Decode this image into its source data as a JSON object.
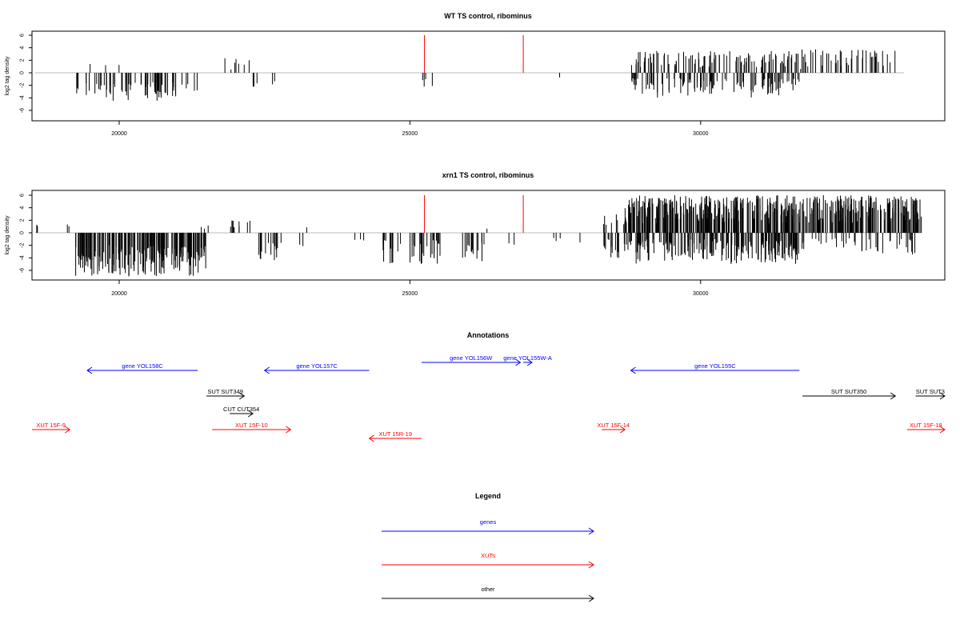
{
  "chart_data": [
    {
      "type": "bar",
      "title": "WT TS control, ribominus",
      "xlabel": "",
      "ylabel": "log2 tag density",
      "xlim": [
        18500,
        34200
      ],
      "ylim": [
        -6,
        6
      ],
      "xticks": [
        20000,
        25000,
        30000
      ],
      "yticks": [
        -6,
        -4,
        -2,
        0,
        2,
        4,
        6
      ],
      "grid": false,
      "baseline": {
        "x": [
          18550,
          33500
        ],
        "color": "#bbbbbb"
      },
      "markers": [
        {
          "x": 25250,
          "color": "#ff0000"
        },
        {
          "x": 26950,
          "color": "#ff0000"
        }
      ],
      "regions": [
        {
          "x": [
            19250,
            21350
          ],
          "min": -4.5,
          "max": -1.5,
          "sign": "neg",
          "count": 70
        },
        {
          "x": [
            19250,
            21350
          ],
          "min": 0.8,
          "max": 1.8,
          "sign": "pos",
          "count": 3
        },
        {
          "x": [
            21750,
            22250
          ],
          "min": 0.5,
          "max": 2.5,
          "sign": "pos",
          "count": 7
        },
        {
          "x": [
            22250,
            22800
          ],
          "min": -2.5,
          "max": -1,
          "sign": "neg",
          "count": 5
        },
        {
          "x": [
            25200,
            25400
          ],
          "min": -2.8,
          "max": -1,
          "sign": "neg",
          "count": 4
        },
        {
          "x": [
            27550,
            27600
          ],
          "min": -1,
          "max": -0.6,
          "sign": "neg",
          "count": 1
        },
        {
          "x": [
            28800,
            31700
          ],
          "min": 0.8,
          "max": 3.5,
          "sign": "pos",
          "count": 110
        },
        {
          "x": [
            28800,
            31700
          ],
          "min": -4,
          "max": -0.8,
          "sign": "neg",
          "count": 110
        },
        {
          "x": [
            31700,
            33400
          ],
          "min": 0.6,
          "max": 3.8,
          "sign": "pos",
          "count": 45
        }
      ]
    },
    {
      "type": "bar",
      "title": "xrn1 TS control, ribominus",
      "xlabel": "",
      "ylabel": "log2 tag density",
      "xlim": [
        18500,
        34200
      ],
      "ylim": [
        -6,
        6
      ],
      "xticks": [
        20000,
        25000,
        30000
      ],
      "yticks": [
        -6,
        -4,
        -2,
        0,
        2,
        4,
        6
      ],
      "grid": false,
      "baseline": {
        "x": [
          18550,
          33800
        ],
        "color": "#bbbbbb"
      },
      "markers": [
        {
          "x": 25250,
          "color": "#ff0000"
        },
        {
          "x": 26950,
          "color": "#ff0000"
        }
      ],
      "regions": [
        {
          "x": [
            18560,
            18600
          ],
          "min": 1,
          "max": 1.6,
          "sign": "pos",
          "count": 2
        },
        {
          "x": [
            19100,
            19150
          ],
          "min": 1,
          "max": 1.7,
          "sign": "pos",
          "count": 2
        },
        {
          "x": [
            19250,
            21550
          ],
          "min": -7,
          "max": -2,
          "sign": "neg",
          "count": 200
        },
        {
          "x": [
            21400,
            21550
          ],
          "min": 0.5,
          "max": 1.2,
          "sign": "pos",
          "count": 3
        },
        {
          "x": [
            21800,
            22300
          ],
          "min": 0.8,
          "max": 2,
          "sign": "pos",
          "count": 10
        },
        {
          "x": [
            22400,
            22800
          ],
          "min": -4.5,
          "max": -1.5,
          "sign": "neg",
          "count": 14
        },
        {
          "x": [
            23100,
            23200
          ],
          "min": -2.5,
          "max": -1.5,
          "sign": "neg",
          "count": 2
        },
        {
          "x": [
            23200,
            23250
          ],
          "min": 0.5,
          "max": 0.9,
          "sign": "pos",
          "count": 1
        },
        {
          "x": [
            24000,
            24300
          ],
          "min": -1.3,
          "max": -0.8,
          "sign": "neg",
          "count": 3
        },
        {
          "x": [
            24500,
            25600
          ],
          "min": -5,
          "max": -1,
          "sign": "neg",
          "count": 40
        },
        {
          "x": [
            25900,
            26300
          ],
          "min": -4.8,
          "max": -1.5,
          "sign": "neg",
          "count": 14
        },
        {
          "x": [
            26300,
            26350
          ],
          "min": 0.6,
          "max": 0.9,
          "sign": "pos",
          "count": 1
        },
        {
          "x": [
            26700,
            26800
          ],
          "min": -2.5,
          "max": -1.5,
          "sign": "neg",
          "count": 2
        },
        {
          "x": [
            27450,
            27600
          ],
          "min": -1.5,
          "max": -0.8,
          "sign": "neg",
          "count": 3
        },
        {
          "x": [
            27900,
            27950
          ],
          "min": -1.8,
          "max": -1.5,
          "sign": "neg",
          "count": 1
        },
        {
          "x": [
            28300,
            28700
          ],
          "min": -4.5,
          "max": -1,
          "sign": "neg",
          "count": 16
        },
        {
          "x": [
            28300,
            28700
          ],
          "min": 0.8,
          "max": 3,
          "sign": "pos",
          "count": 8
        },
        {
          "x": [
            28700,
            33800
          ],
          "min": 1.5,
          "max": 6,
          "sign": "pos",
          "count": 450
        },
        {
          "x": [
            28700,
            31700
          ],
          "min": -5,
          "max": -1,
          "sign": "neg",
          "count": 200
        },
        {
          "x": [
            31700,
            33700
          ],
          "min": -3.5,
          "max": -0.8,
          "sign": "neg",
          "count": 40
        }
      ]
    }
  ],
  "annotations": {
    "title": "Annotations",
    "xlim": [
      18500,
      34200
    ],
    "tracks": [
      {
        "label": "gene YOL158C",
        "start": 21350,
        "end": 19450,
        "color": "#0000ff",
        "row": 1
      },
      {
        "label": "gene YOL157C",
        "start": 24300,
        "end": 22500,
        "color": "#0000ff",
        "row": 1
      },
      {
        "label": "gene YOL156W",
        "start": 25200,
        "end": 26900,
        "color": "#0000ff",
        "row": 0
      },
      {
        "label": "gene YOL155W-A",
        "start": 26950,
        "end": 27100,
        "color": "#0000ff",
        "row": 0
      },
      {
        "label": "gene YOL155C",
        "start": 31700,
        "end": 28800,
        "color": "#0000ff",
        "row": 1
      },
      {
        "label": "SUT SUT349",
        "start": 21500,
        "end": 22150,
        "color": "#000000",
        "row": 2
      },
      {
        "label": "SUT SUT350",
        "start": 31750,
        "end": 33350,
        "color": "#000000",
        "row": 2
      },
      {
        "label": "SUT SUT3",
        "start": 33700,
        "end": 34200,
        "color": "#000000",
        "row": 2
      },
      {
        "label": "CUT CUT354",
        "start": 21900,
        "end": 22300,
        "color": "#000000",
        "row": 3
      },
      {
        "label": "XUT 15F-9",
        "start": 18500,
        "end": 19150,
        "color": "#ff0000",
        "row": 4
      },
      {
        "label": "XUT 15F-10",
        "start": 21600,
        "end": 22950,
        "color": "#ff0000",
        "row": 4
      },
      {
        "label": "XUT 15F-14",
        "start": 28300,
        "end": 28700,
        "color": "#ff0000",
        "row": 4
      },
      {
        "label": "XUT 15F-18",
        "start": 33550,
        "end": 34200,
        "color": "#ff0000",
        "row": 4
      },
      {
        "label": "XUT 15R-19",
        "start": 25200,
        "end": 24300,
        "color": "#ff0000",
        "row": 5
      }
    ]
  },
  "legend": {
    "title": "Legend",
    "items": [
      {
        "label": "genes",
        "color": "#0000ff"
      },
      {
        "label": "XUTs",
        "color": "#ff0000"
      },
      {
        "label": "other",
        "color": "#000000"
      }
    ]
  }
}
